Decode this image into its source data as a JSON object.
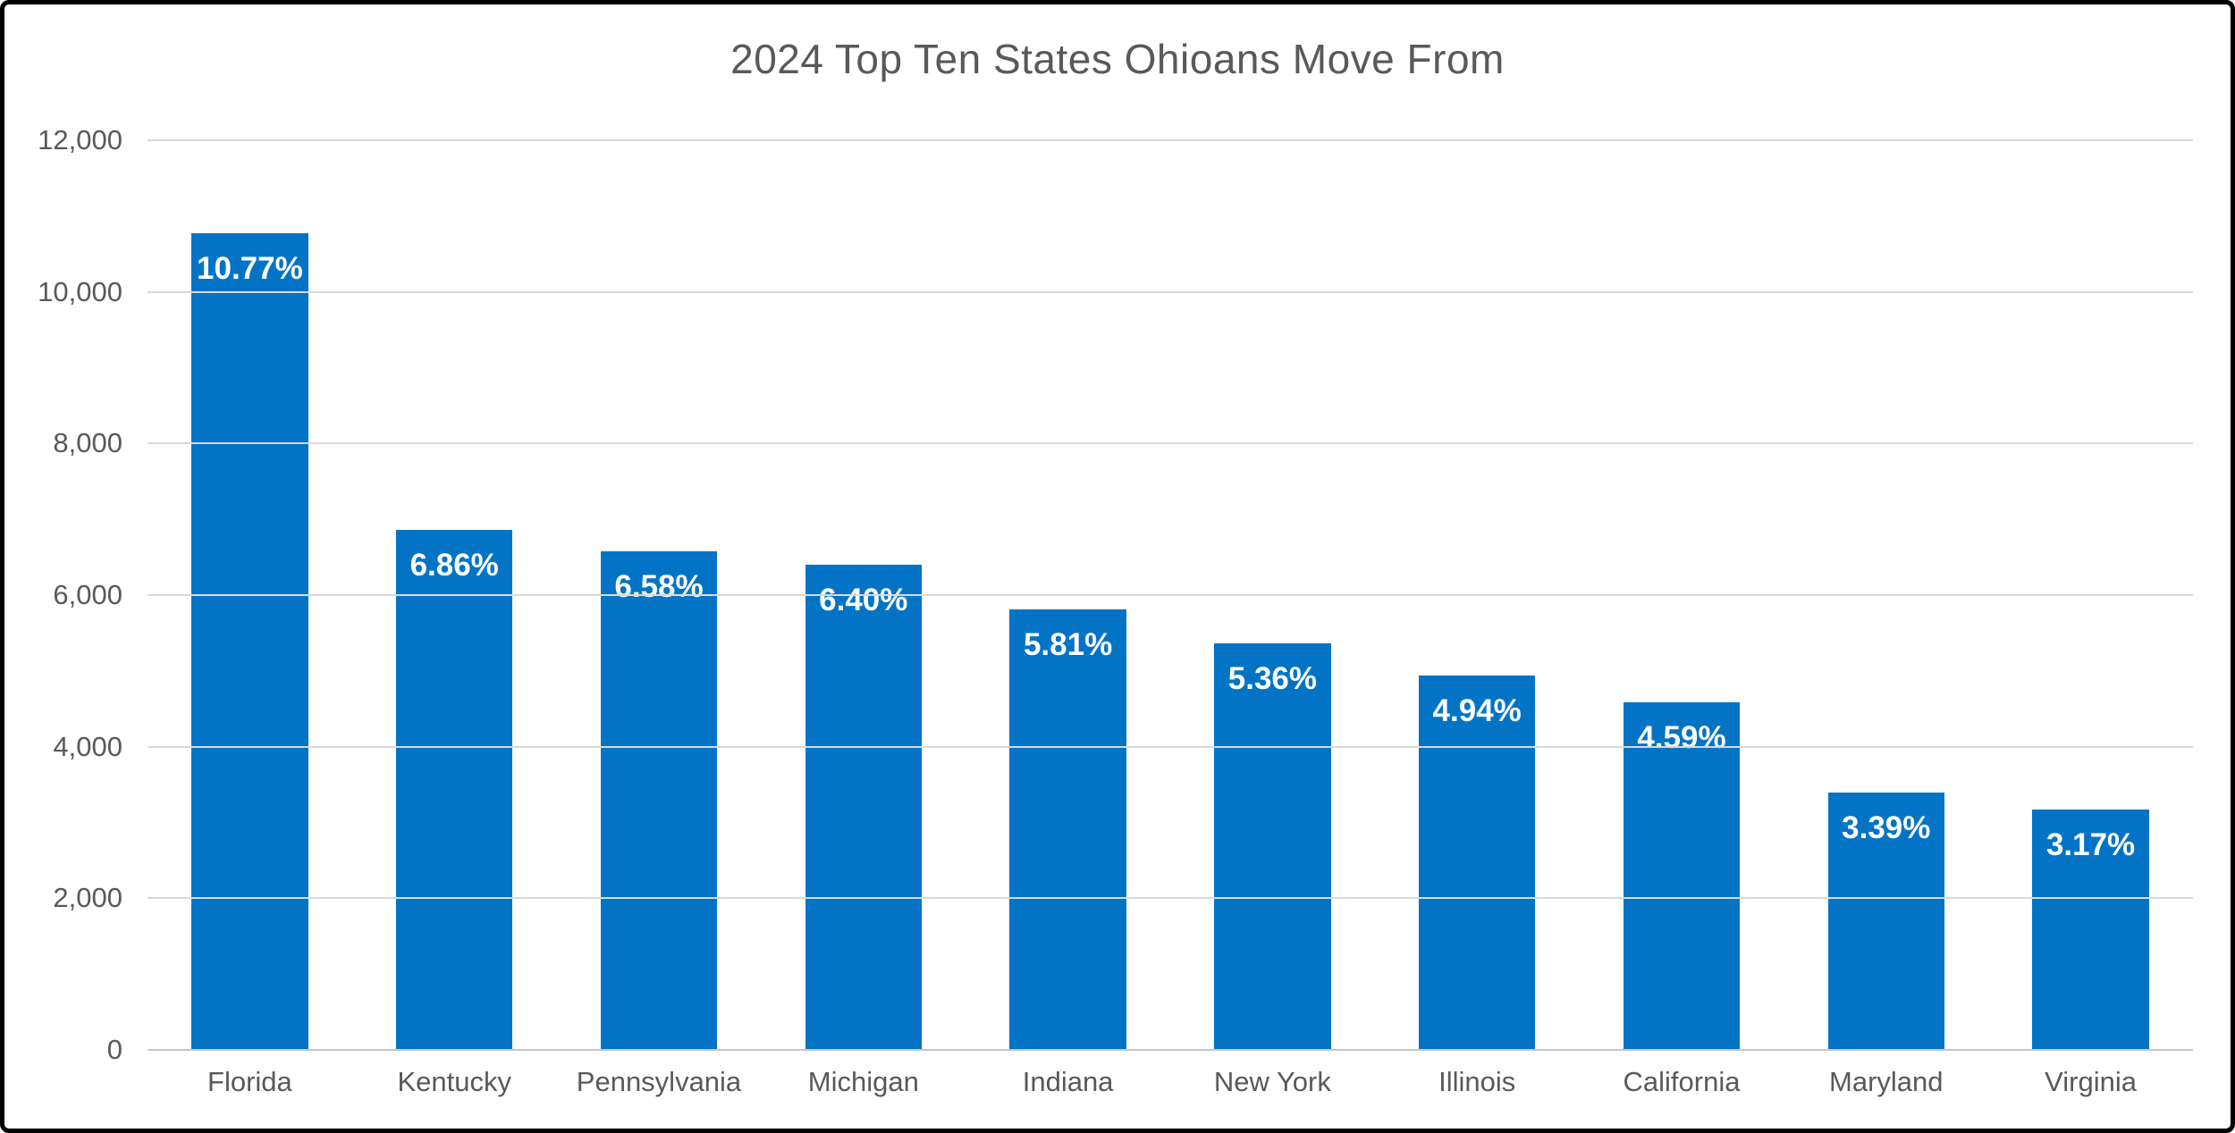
{
  "frame": {
    "background": "#ffffff",
    "border_color": "#000000"
  },
  "chart_data": {
    "type": "bar",
    "title": "2024 Top Ten States Ohioans Move From",
    "categories": [
      "Florida",
      "Kentucky",
      "Pennsylvania",
      "Michigan",
      "Indiana",
      "New York",
      "Illinois",
      "California",
      "Maryland",
      "Virginia"
    ],
    "values": [
      10770,
      6860,
      6580,
      6400,
      5810,
      5360,
      4940,
      4590,
      3390,
      3170
    ],
    "bar_labels": [
      "10.77%",
      "6.86%",
      "6.58%",
      "6.40%",
      "5.81%",
      "5.36%",
      "4.94%",
      "4.59%",
      "3.39%",
      "3.17%"
    ],
    "xlabel": "",
    "ylabel": "",
    "ylim": [
      0,
      12000
    ],
    "ytick_interval": 2000,
    "ytick_labels": [
      "12,000",
      "10,000",
      "8,000",
      "6,000",
      "4,000",
      "2,000",
      "0"
    ],
    "grid": true,
    "legend": false,
    "colors": {
      "bar": "#0374C5",
      "bar_label": "#ffffff",
      "title": "#595959",
      "tick_label": "#595959",
      "gridline": "#D9D9D9",
      "axis_line": "#C6C6C6"
    }
  }
}
